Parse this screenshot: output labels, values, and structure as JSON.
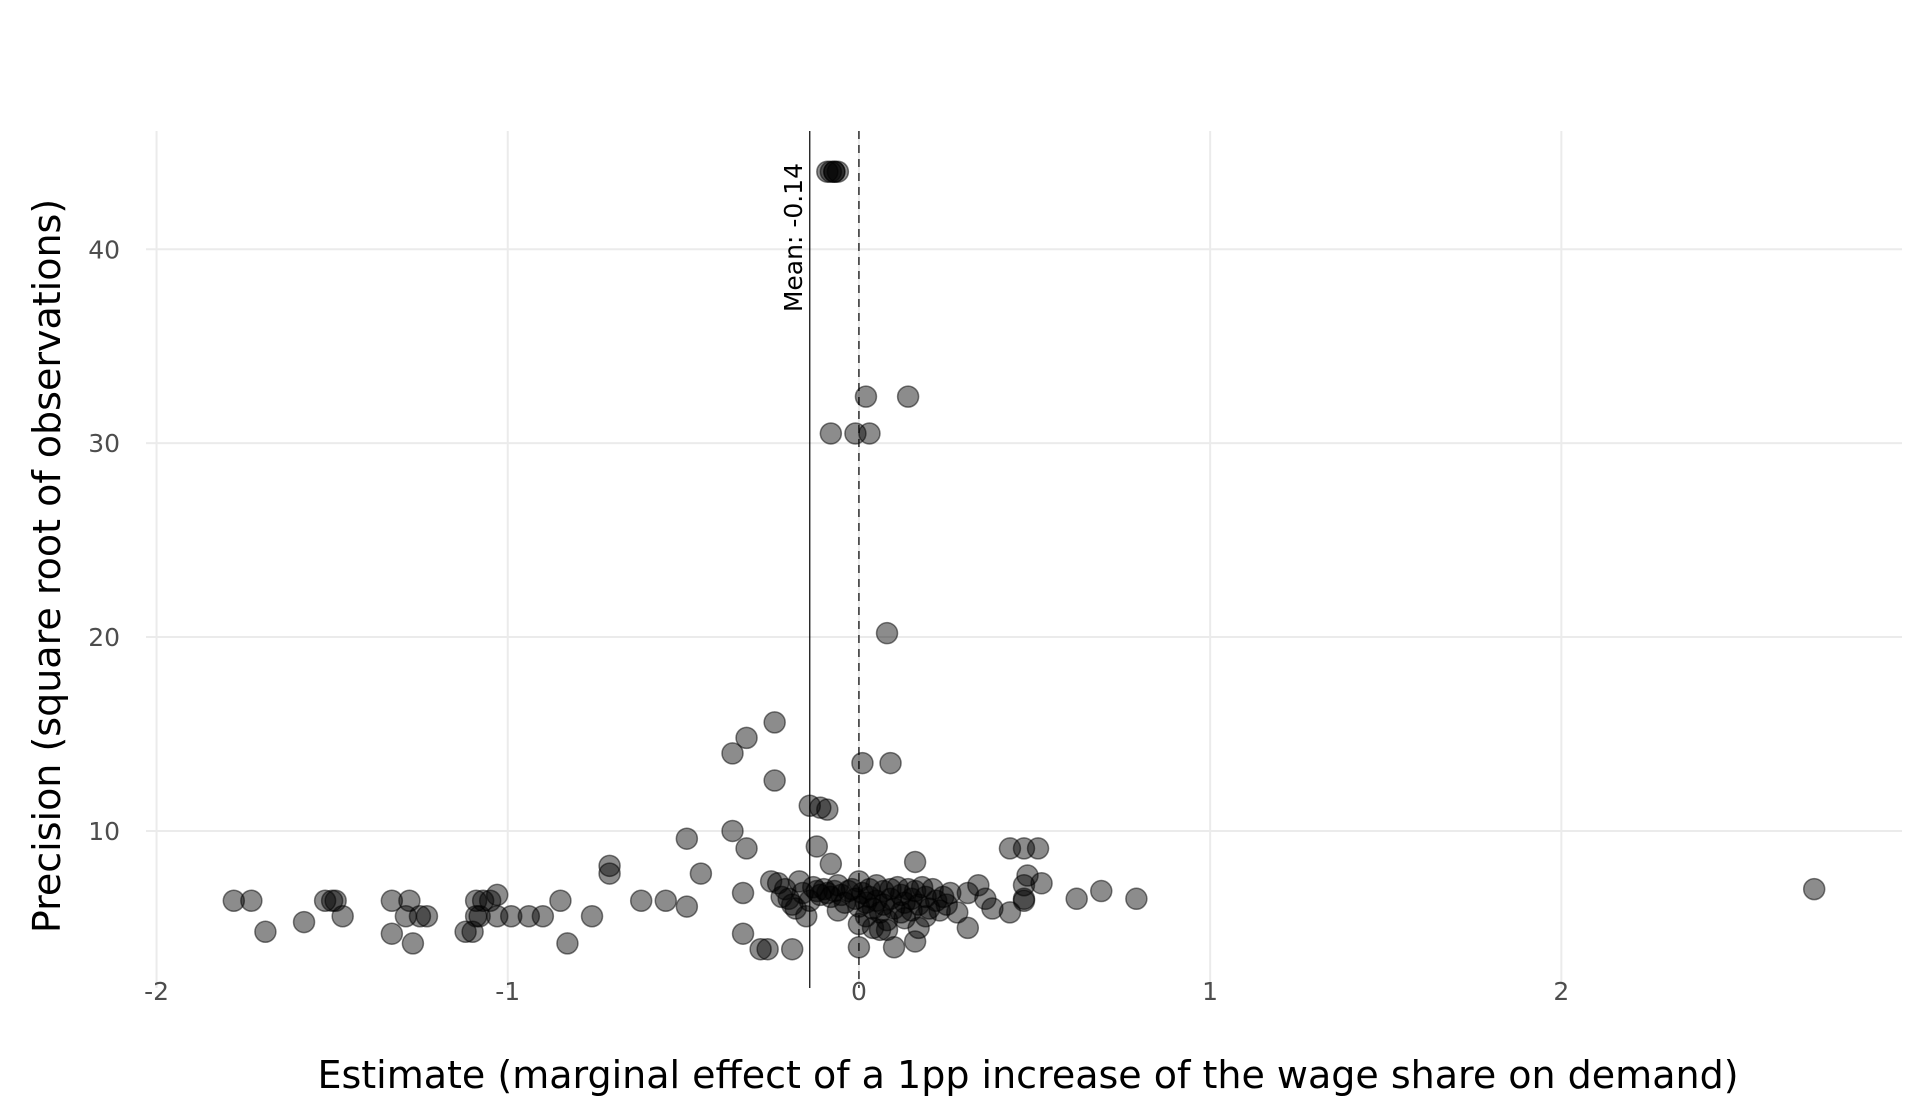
{
  "chart_data": {
    "type": "scatter",
    "title": "",
    "xlabel": "Estimate (marginal effect of a 1pp increase of the wage share on demand)",
    "ylabel": "Precision (square root of observations)",
    "xlim": [
      -2.03,
      2.97
    ],
    "ylim": [
      1.9,
      46.1
    ],
    "x_ticks": [
      -2,
      -1,
      0,
      1,
      2
    ],
    "x_tick_labels": [
      "-2",
      "-1",
      "0",
      "1",
      "2"
    ],
    "y_ticks": [
      10,
      20,
      30,
      40
    ],
    "y_tick_labels": [
      "10",
      "20",
      "30",
      "40"
    ],
    "grid": true,
    "legend": "none",
    "point_color": "#000000",
    "point_alpha": 0.45,
    "mean": {
      "value": -0.14,
      "label": "Mean: -0.14"
    },
    "reference_line": {
      "value": 0,
      "style": "dashed"
    },
    "points": [
      [
        -0.09,
        44
      ],
      [
        -0.08,
        44
      ],
      [
        -0.07,
        44
      ],
      [
        -0.06,
        44
      ],
      [
        -0.07,
        44
      ],
      [
        0.02,
        32.4
      ],
      [
        0.14,
        32.4
      ],
      [
        -0.08,
        30.5
      ],
      [
        -0.01,
        30.5
      ],
      [
        0.03,
        30.5
      ],
      [
        0.08,
        20.2
      ],
      [
        0.01,
        13.5
      ],
      [
        0.09,
        13.5
      ],
      [
        -0.36,
        14.0
      ],
      [
        -0.32,
        14.8
      ],
      [
        -0.24,
        15.6
      ],
      [
        -0.24,
        12.6
      ],
      [
        -0.14,
        11.3
      ],
      [
        -0.11,
        11.2
      ],
      [
        -0.09,
        11.1
      ],
      [
        -0.12,
        9.2
      ],
      [
        -0.08,
        8.3
      ],
      [
        -0.36,
        10.0
      ],
      [
        -0.32,
        9.1
      ],
      [
        -0.49,
        9.6
      ],
      [
        -0.45,
        7.8
      ],
      [
        -0.71,
        8.2
      ],
      [
        -0.71,
        7.8
      ],
      [
        -0.33,
        6.8
      ],
      [
        -0.33,
        4.7
      ],
      [
        -0.28,
        3.9
      ],
      [
        -0.26,
        3.9
      ],
      [
        -0.19,
        3.9
      ],
      [
        -1.78,
        6.4
      ],
      [
        -1.73,
        6.4
      ],
      [
        -1.69,
        4.8
      ],
      [
        -1.58,
        5.3
      ],
      [
        -1.52,
        6.4
      ],
      [
        -1.5,
        6.4
      ],
      [
        -1.49,
        6.4
      ],
      [
        -1.47,
        5.6
      ],
      [
        -1.33,
        6.4
      ],
      [
        -1.33,
        4.7
      ],
      [
        -1.29,
        5.6
      ],
      [
        -1.28,
        6.4
      ],
      [
        -1.27,
        4.2
      ],
      [
        -1.25,
        5.6
      ],
      [
        -1.23,
        5.6
      ],
      [
        -1.12,
        4.8
      ],
      [
        -1.1,
        4.8
      ],
      [
        -1.09,
        5.6
      ],
      [
        -1.09,
        6.4
      ],
      [
        -1.08,
        5.6
      ],
      [
        -1.07,
        6.4
      ],
      [
        -1.05,
        6.4
      ],
      [
        -1.03,
        6.7
      ],
      [
        -1.03,
        5.6
      ],
      [
        -0.99,
        5.6
      ],
      [
        -0.94,
        5.6
      ],
      [
        -0.9,
        5.6
      ],
      [
        -0.85,
        6.4
      ],
      [
        -0.83,
        4.2
      ],
      [
        -0.76,
        5.6
      ],
      [
        -0.62,
        6.4
      ],
      [
        -0.55,
        6.4
      ],
      [
        -0.49,
        6.1
      ],
      [
        0.16,
        8.4
      ],
      [
        0.43,
        9.1
      ],
      [
        0.47,
        9.1
      ],
      [
        0.51,
        9.1
      ],
      [
        0.48,
        7.7
      ],
      [
        0.47,
        7.2
      ],
      [
        0.52,
        7.3
      ],
      [
        0.47,
        6.5
      ],
      [
        0.47,
        6.4
      ],
      [
        0.43,
        5.8
      ],
      [
        0.38,
        6.0
      ],
      [
        0.36,
        6.5
      ],
      [
        0.34,
        7.2
      ],
      [
        0.31,
        6.8
      ],
      [
        0.31,
        5.0
      ],
      [
        0.28,
        5.8
      ],
      [
        0.26,
        6.8
      ],
      [
        0.62,
        6.5
      ],
      [
        0.69,
        6.9
      ],
      [
        0.79,
        6.5
      ],
      [
        2.72,
        7.0
      ],
      [
        0.16,
        4.3
      ],
      [
        0.17,
        5.0
      ],
      [
        0.1,
        4.0
      ],
      [
        0.0,
        4.0
      ],
      [
        0.08,
        4.9
      ],
      [
        -0.25,
        7.4
      ],
      [
        -0.23,
        7.3
      ],
      [
        -0.21,
        7.0
      ],
      [
        -0.2,
        6.5
      ],
      [
        -0.19,
        6.2
      ],
      [
        -0.17,
        7.4
      ],
      [
        -0.16,
        6.8
      ],
      [
        -0.15,
        5.6
      ],
      [
        -0.13,
        7.1
      ],
      [
        -0.12,
        6.9
      ],
      [
        -0.11,
        6.7
      ],
      [
        -0.1,
        7.0
      ],
      [
        -0.09,
        6.8
      ],
      [
        -0.08,
        6.6
      ],
      [
        -0.07,
        6.9
      ],
      [
        -0.06,
        7.2
      ],
      [
        -0.05,
        6.7
      ],
      [
        -0.04,
        6.3
      ],
      [
        -0.03,
        6.9
      ],
      [
        -0.02,
        7.0
      ],
      [
        -0.01,
        6.5
      ],
      [
        0.0,
        7.4
      ],
      [
        0.0,
        6.1
      ],
      [
        0.0,
        5.2
      ],
      [
        0.01,
        6.8
      ],
      [
        0.02,
        6.3
      ],
      [
        0.02,
        5.6
      ],
      [
        0.03,
        7.0
      ],
      [
        0.03,
        6.6
      ],
      [
        0.04,
        6.0
      ],
      [
        0.05,
        7.2
      ],
      [
        0.05,
        6.4
      ],
      [
        0.06,
        5.8
      ],
      [
        0.07,
        6.9
      ],
      [
        0.07,
        6.2
      ],
      [
        0.08,
        5.4
      ],
      [
        0.09,
        7.0
      ],
      [
        0.09,
        6.5
      ],
      [
        0.1,
        6.0
      ],
      [
        0.11,
        7.1
      ],
      [
        0.12,
        6.7
      ],
      [
        0.12,
        5.8
      ],
      [
        0.13,
        6.3
      ],
      [
        0.14,
        7.0
      ],
      [
        0.15,
        6.5
      ],
      [
        0.15,
        5.9
      ],
      [
        0.16,
        6.9
      ],
      [
        0.17,
        6.2
      ],
      [
        0.18,
        7.1
      ],
      [
        0.19,
        6.6
      ],
      [
        0.2,
        6.0
      ],
      [
        0.21,
        7.0
      ],
      [
        0.22,
        6.4
      ],
      [
        0.23,
        5.9
      ],
      [
        0.24,
        6.6
      ],
      [
        0.25,
        6.2
      ],
      [
        -0.22,
        6.6
      ],
      [
        -0.18,
        6.0
      ],
      [
        -0.14,
        6.4
      ],
      [
        -0.06,
        5.9
      ],
      [
        0.04,
        5.0
      ],
      [
        0.06,
        4.9
      ],
      [
        0.13,
        5.5
      ],
      [
        0.19,
        5.6
      ]
    ]
  }
}
